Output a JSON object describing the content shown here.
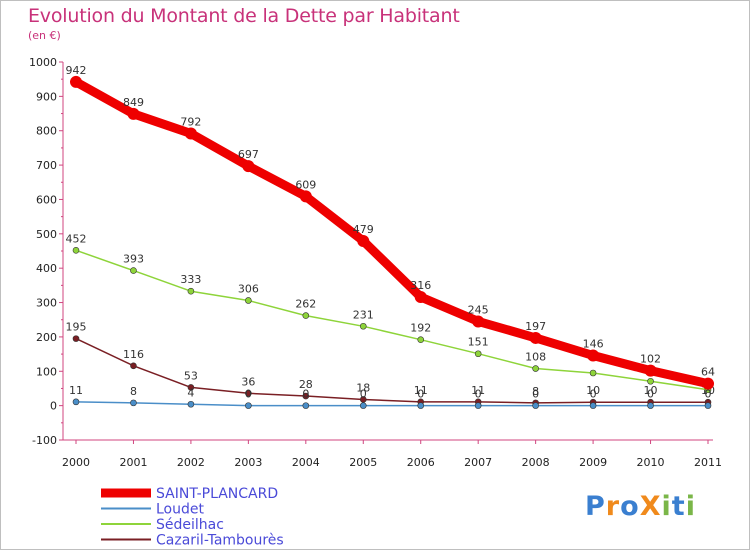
{
  "title": "Evolution du Montant de la Dette par Habitant",
  "subtitle": "(en €)",
  "logo": {
    "text": "ProXiti",
    "letters": [
      {
        "ch": "P",
        "color": "#3a7fd0"
      },
      {
        "ch": "r",
        "color": "#f08a1c"
      },
      {
        "ch": "o",
        "color": "#3a7fd0"
      },
      {
        "ch": "X",
        "color": "#f08a1c"
      },
      {
        "ch": "i",
        "color": "#7ab648"
      },
      {
        "ch": "t",
        "color": "#3a7fd0"
      },
      {
        "ch": "i",
        "color": "#7ab648"
      }
    ]
  },
  "chart_data": {
    "type": "line",
    "x": [
      "2000",
      "2001",
      "2002",
      "2003",
      "2004",
      "2005",
      "2006",
      "2007",
      "2008",
      "2009",
      "2010",
      "2011"
    ],
    "ylim": [
      -100,
      1000
    ],
    "yticks": [
      -100,
      0,
      100,
      200,
      300,
      400,
      500,
      600,
      700,
      800,
      900,
      1000
    ],
    "grid": false,
    "legend_position": "bottom-left",
    "series": [
      {
        "name": "Cazaril-Tambourès",
        "color": "#7a1f24",
        "values": [
          195,
          116,
          53,
          36,
          28,
          18,
          11,
          11,
          8,
          10,
          10,
          10
        ],
        "labels": [
          "195",
          "116",
          "53",
          "36",
          "28",
          "18",
          "11",
          "11",
          "8",
          "10",
          "10",
          "10"
        ]
      },
      {
        "name": "Sédeilhac",
        "color": "#8ed43a",
        "values": [
          452,
          393,
          333,
          306,
          262,
          231,
          192,
          151,
          108,
          95,
          71,
          46
        ],
        "labels": [
          "452",
          "393",
          "333",
          "306",
          "262",
          "231",
          "192",
          "151",
          "108",
          "",
          "",
          ""
        ]
      },
      {
        "name": "Loudet",
        "color": "#4a8ec8",
        "values": [
          11,
          8,
          4,
          0,
          0,
          0,
          0,
          0,
          0,
          0,
          0,
          0
        ],
        "labels": [
          "11",
          "8",
          "4",
          "0",
          "0",
          "0",
          "0",
          "0",
          "0",
          "0",
          "0",
          "0"
        ]
      },
      {
        "name": "SAINT-PLANCARD",
        "color": "#ee0000",
        "values": [
          942,
          849,
          792,
          697,
          609,
          479,
          316,
          245,
          197,
          146,
          102,
          64
        ],
        "labels": [
          "942",
          "849",
          "792",
          "697",
          "609",
          "479",
          "316",
          "245",
          "197",
          "146",
          "102",
          "64"
        ]
      }
    ],
    "legend": [
      "SAINT-PLANCARD",
      "Loudet",
      "Sédeilhac",
      "Cazaril-Tambourès"
    ]
  }
}
